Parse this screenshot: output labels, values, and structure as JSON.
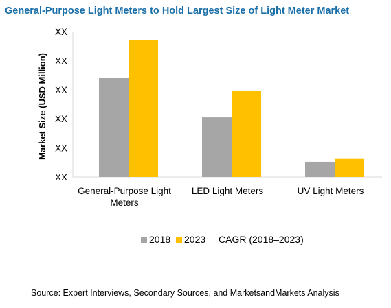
{
  "colors": {
    "title": "#1b6fa8",
    "series_2018": "#a6a6a6",
    "series_2023": "#ffc000",
    "axis": "#d9d9d9"
  },
  "chart_data": {
    "type": "bar",
    "title": "General-Purpose Light Meters to Hold Largest Size of Light Meter Market",
    "ylabel": "Market Size (USD Million)",
    "xlabel": "",
    "y_tick_labels": [
      "XX",
      "XX",
      "XX",
      "XX",
      "XX",
      "XX"
    ],
    "ylim": [
      0,
      5
    ],
    "categories": [
      [
        "General-Purpose Light",
        "Meters"
      ],
      [
        "LED Light Meters"
      ],
      [
        "UV Light Meters"
      ]
    ],
    "series": [
      {
        "name": "2018",
        "color": "#a6a6a6",
        "values": [
          3.4,
          2.05,
          0.52
        ]
      },
      {
        "name": "2023",
        "color": "#ffc000",
        "values": [
          4.7,
          2.95,
          0.62
        ]
      }
    ],
    "legend_extra": "CAGR (2018–2023)",
    "legend_position": "bottom",
    "grid": false
  },
  "source": "Source: Expert Interviews, Secondary Sources, and MarketsandMarkets Analysis"
}
